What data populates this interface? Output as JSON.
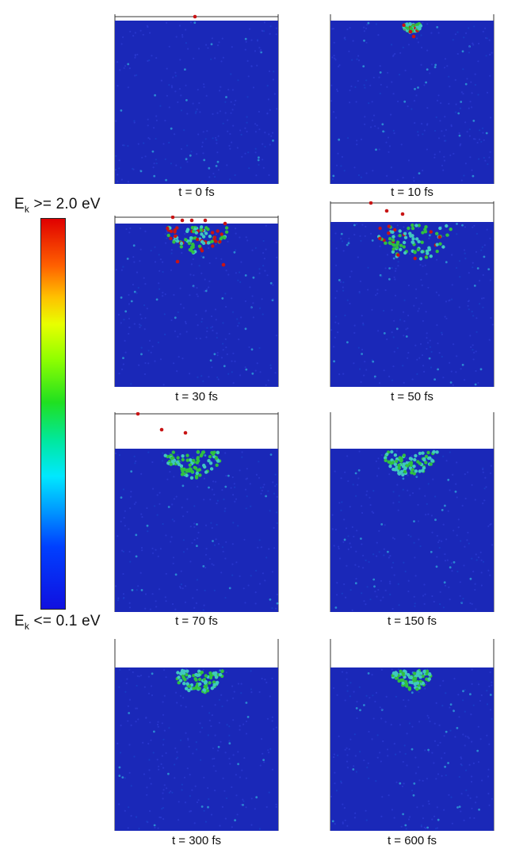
{
  "legend": {
    "max_label_prefix": "E",
    "max_label_sub": "k",
    "max_label_suffix": " >= 2.0 eV",
    "min_label_prefix": "E",
    "min_label_sub": "k",
    "min_label_suffix": " <= 0.1 eV",
    "gradient_colors": [
      "#e00000",
      "#ff6000",
      "#ffc000",
      "#e8ff00",
      "#90ff00",
      "#20e020",
      "#00e8a0",
      "#00e8ff",
      "#00a0ff",
      "#0040ff",
      "#1010e0"
    ]
  },
  "panels": [
    {
      "caption": "t = 0 fs"
    },
    {
      "caption": "t = 10 fs"
    },
    {
      "caption": "t = 30 fs"
    },
    {
      "caption": "t = 50 fs"
    },
    {
      "caption": "t = 70 fs"
    },
    {
      "caption": "t = 150 fs"
    },
    {
      "caption": "t = 300 fs"
    },
    {
      "caption": "t = 600 fs"
    }
  ],
  "colors": {
    "substrate": "#1a28b8",
    "hot": "#c81414",
    "warm": "#30c040",
    "cool": "#40c8c0"
  }
}
